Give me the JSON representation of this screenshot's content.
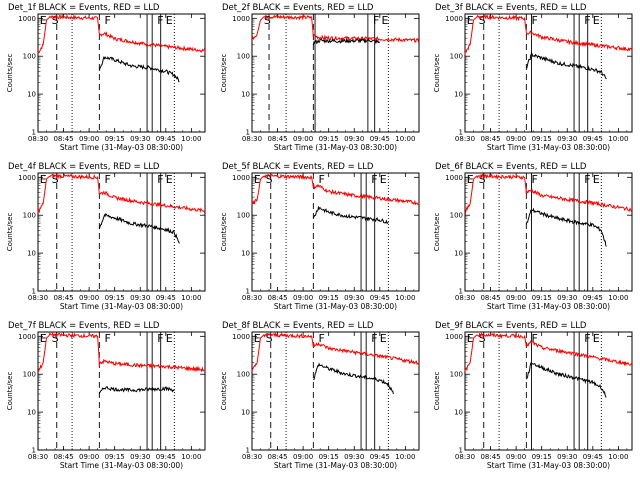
{
  "common": {
    "xlabel": "Start Time (31-May-03 08:30:00)",
    "ylabel": "Counts/sec",
    "x_ticks": [
      "08:30",
      "08:45",
      "09:00",
      "09:15",
      "09:30",
      "09:45",
      "10:00"
    ],
    "y_ticks": [
      "1",
      "10",
      "100",
      "1000"
    ],
    "colors": {
      "events": "#000000",
      "lld": "#ff0000"
    }
  },
  "chart_data": [
    {
      "type": "line",
      "title": "Det_1f BLACK = Events, RED = LLD",
      "xlim": [
        "08:30",
        "10:08"
      ],
      "ylim": [
        1,
        1300
      ],
      "y_scale": "log",
      "annotations": [
        {
          "t": "08:31",
          "text": "E"
        },
        {
          "t": "08:38",
          "text": "S"
        },
        {
          "t": "09:09",
          "text": "F"
        },
        {
          "t": "09:40",
          "text": "F"
        },
        {
          "t": "09:45",
          "text": "E"
        }
      ],
      "dashed_lines": [
        "08:41",
        "09:06"
      ],
      "dotted_lines": [
        "08:50",
        "09:50"
      ],
      "solid_lines": [
        "09:34",
        "09:37",
        "09:42"
      ],
      "series": [
        {
          "name": "LLD",
          "x": [
            "08:30",
            "08:33",
            "08:35",
            "08:37",
            "09:05",
            "09:06",
            "09:09",
            "09:15",
            "09:30",
            "09:45",
            "10:08"
          ],
          "values": [
            120,
            200,
            900,
            1100,
            1000,
            370,
            400,
            290,
            220,
            180,
            140
          ]
        },
        {
          "name": "Events",
          "x": [
            "09:06",
            "09:09",
            "09:15",
            "09:25",
            "09:35",
            "09:45",
            "09:50",
            "09:53"
          ],
          "values": [
            45,
            95,
            80,
            55,
            50,
            40,
            32,
            22
          ]
        }
      ]
    },
    {
      "type": "line",
      "title": "Det_2f BLACK = Events, RED = LLD",
      "xlim": [
        "08:30",
        "10:08"
      ],
      "ylim": [
        1,
        1300
      ],
      "y_scale": "log",
      "annotations": [
        {
          "t": "08:37",
          "text": "S"
        },
        {
          "t": "09:41",
          "text": "F"
        },
        {
          "t": "09:46",
          "text": "E"
        }
      ],
      "dashed_lines": [
        "08:40",
        "09:06"
      ],
      "dotted_lines": [
        "08:50",
        "09:50"
      ],
      "solid_lines": [
        "09:07",
        "09:38",
        "09:42"
      ],
      "series": [
        {
          "name": "LLD",
          "x": [
            "08:30",
            "08:33",
            "08:35",
            "08:37",
            "09:05",
            "09:06",
            "09:10",
            "09:20",
            "09:40",
            "10:08"
          ],
          "values": [
            300,
            380,
            900,
            1100,
            1050,
            350,
            310,
            300,
            290,
            260
          ]
        },
        {
          "name": "Events",
          "x": [
            "09:06",
            "09:10",
            "09:20",
            "09:40",
            "09:45"
          ],
          "values": [
            220,
            260,
            250,
            260,
            230
          ]
        }
      ]
    },
    {
      "type": "line",
      "title": "Det_3f BLACK = Events, RED = LLD",
      "xlim": [
        "08:30",
        "10:08"
      ],
      "ylim": [
        1,
        1300
      ],
      "y_scale": "log",
      "annotations": [
        {
          "t": "08:31",
          "text": "E"
        },
        {
          "t": "08:38",
          "text": "S"
        },
        {
          "t": "09:09",
          "text": "F"
        },
        {
          "t": "09:40",
          "text": "F"
        },
        {
          "t": "09:45",
          "text": "E"
        }
      ],
      "dashed_lines": [
        "08:41",
        "09:06"
      ],
      "dotted_lines": [
        "08:50",
        "09:50"
      ],
      "solid_lines": [
        "09:09",
        "09:34",
        "09:37",
        "09:42"
      ],
      "series": [
        {
          "name": "LLD",
          "x": [
            "08:30",
            "08:33",
            "08:35",
            "08:37",
            "09:05",
            "09:06",
            "09:09",
            "09:15",
            "09:30",
            "09:45",
            "10:08"
          ],
          "values": [
            120,
            200,
            900,
            1100,
            1000,
            400,
            420,
            320,
            240,
            200,
            150
          ]
        },
        {
          "name": "Events",
          "x": [
            "09:06",
            "09:09",
            "09:15",
            "09:25",
            "09:35",
            "09:45",
            "09:50",
            "09:53"
          ],
          "values": [
            50,
            110,
            90,
            65,
            55,
            45,
            38,
            25
          ]
        }
      ]
    },
    {
      "type": "line",
      "title": "Det_4f BLACK = Events, RED = LLD",
      "xlim": [
        "08:30",
        "10:08"
      ],
      "ylim": [
        1,
        1300
      ],
      "y_scale": "log",
      "annotations": [
        {
          "t": "08:31",
          "text": "E"
        },
        {
          "t": "08:38",
          "text": "S"
        },
        {
          "t": "09:09",
          "text": "F"
        },
        {
          "t": "09:40",
          "text": "F"
        },
        {
          "t": "09:45",
          "text": "E"
        }
      ],
      "dashed_lines": [
        "08:41",
        "09:06"
      ],
      "dotted_lines": [
        "08:50",
        "09:50"
      ],
      "solid_lines": [
        "09:34",
        "09:37",
        "09:42"
      ],
      "series": [
        {
          "name": "LLD",
          "x": [
            "08:30",
            "08:33",
            "08:35",
            "08:37",
            "09:05",
            "09:06",
            "09:09",
            "09:15",
            "09:30",
            "09:45",
            "10:08"
          ],
          "values": [
            120,
            200,
            900,
            1100,
            1000,
            370,
            400,
            290,
            220,
            180,
            130
          ]
        },
        {
          "name": "Events",
          "x": [
            "09:06",
            "09:09",
            "09:15",
            "09:25",
            "09:35",
            "09:45",
            "09:50",
            "09:53"
          ],
          "values": [
            45,
            100,
            85,
            60,
            52,
            42,
            35,
            18
          ]
        }
      ]
    },
    {
      "type": "line",
      "title": "Det_5f BLACK = Events, RED = LLD",
      "xlim": [
        "08:30",
        "10:08"
      ],
      "ylim": [
        1,
        1300
      ],
      "y_scale": "log",
      "annotations": [
        {
          "t": "08:31",
          "text": "E"
        },
        {
          "t": "08:38",
          "text": "S"
        },
        {
          "t": "09:09",
          "text": "F"
        },
        {
          "t": "09:40",
          "text": "F"
        },
        {
          "t": "09:45",
          "text": "E"
        }
      ],
      "dashed_lines": [
        "08:41",
        "09:06"
      ],
      "dotted_lines": [
        "08:50",
        "09:50"
      ],
      "solid_lines": [
        "09:34",
        "09:37",
        "09:42"
      ],
      "series": [
        {
          "name": "LLD",
          "x": [
            "08:30",
            "08:33",
            "08:35",
            "08:37",
            "09:05",
            "09:06",
            "09:09",
            "09:15",
            "09:30",
            "09:45",
            "10:08"
          ],
          "values": [
            200,
            250,
            900,
            1100,
            1000,
            550,
            600,
            420,
            330,
            280,
            210
          ]
        },
        {
          "name": "Events",
          "x": [
            "09:06",
            "09:09",
            "09:15",
            "09:25",
            "09:35",
            "09:45",
            "09:50"
          ],
          "values": [
            80,
            160,
            120,
            95,
            85,
            75,
            65
          ]
        }
      ]
    },
    {
      "type": "line",
      "title": "Det_6f BLACK = Events, RED = LLD",
      "xlim": [
        "08:30",
        "10:08"
      ],
      "ylim": [
        1,
        1300
      ],
      "y_scale": "log",
      "annotations": [
        {
          "t": "08:31",
          "text": "E"
        },
        {
          "t": "08:38",
          "text": "S"
        },
        {
          "t": "09:09",
          "text": "F"
        },
        {
          "t": "09:40",
          "text": "F"
        },
        {
          "t": "09:45",
          "text": "E"
        }
      ],
      "dashed_lines": [
        "08:41",
        "09:06"
      ],
      "dotted_lines": [
        "08:50",
        "09:50"
      ],
      "solid_lines": [
        "09:09",
        "09:34",
        "09:37",
        "09:42"
      ],
      "series": [
        {
          "name": "LLD",
          "x": [
            "08:30",
            "08:33",
            "08:35",
            "08:37",
            "09:05",
            "09:06",
            "09:09",
            "09:15",
            "09:30",
            "09:45",
            "10:08"
          ],
          "values": [
            120,
            200,
            900,
            1100,
            1000,
            400,
            450,
            330,
            260,
            210,
            140
          ]
        },
        {
          "name": "Events",
          "x": [
            "09:06",
            "09:09",
            "09:15",
            "09:25",
            "09:35",
            "09:45",
            "09:50",
            "09:53"
          ],
          "values": [
            55,
            140,
            110,
            80,
            65,
            55,
            40,
            15
          ]
        }
      ]
    },
    {
      "type": "line",
      "title": "Det_7f BLACK = Events, RED = LLD",
      "xlim": [
        "08:30",
        "10:08"
      ],
      "ylim": [
        1,
        1300
      ],
      "y_scale": "log",
      "annotations": [
        {
          "t": "08:31",
          "text": "E"
        },
        {
          "t": "08:38",
          "text": "S"
        },
        {
          "t": "09:09",
          "text": "F"
        },
        {
          "t": "09:40",
          "text": "F"
        },
        {
          "t": "09:45",
          "text": "E"
        }
      ],
      "dashed_lines": [
        "08:41",
        "09:06"
      ],
      "dotted_lines": [
        "08:50",
        "09:50"
      ],
      "solid_lines": [
        "09:34",
        "09:37",
        "09:42"
      ],
      "series": [
        {
          "name": "LLD",
          "x": [
            "08:30",
            "08:33",
            "08:35",
            "08:37",
            "09:05",
            "09:06",
            "09:09",
            "09:15",
            "09:30",
            "09:45",
            "10:08"
          ],
          "values": [
            120,
            200,
            900,
            1100,
            1000,
            200,
            220,
            190,
            170,
            160,
            130
          ]
        },
        {
          "name": "Events",
          "x": [
            "09:06",
            "09:09",
            "09:15",
            "09:25",
            "09:35",
            "09:45",
            "09:50"
          ],
          "values": [
            30,
            45,
            40,
            38,
            40,
            42,
            38
          ]
        }
      ]
    },
    {
      "type": "line",
      "title": "Det_8f BLACK = Events, RED = LLD",
      "xlim": [
        "08:30",
        "10:08"
      ],
      "ylim": [
        1,
        1300
      ],
      "y_scale": "log",
      "annotations": [
        {
          "t": "08:31",
          "text": "E"
        },
        {
          "t": "08:38",
          "text": "S"
        },
        {
          "t": "09:09",
          "text": "F"
        },
        {
          "t": "09:40",
          "text": "F"
        },
        {
          "t": "09:45",
          "text": "E"
        }
      ],
      "dashed_lines": [
        "08:41",
        "09:06"
      ],
      "dotted_lines": [
        "08:50",
        "09:50"
      ],
      "solid_lines": [
        "09:34",
        "09:37",
        "09:42"
      ],
      "series": [
        {
          "name": "LLD",
          "x": [
            "08:30",
            "08:33",
            "08:35",
            "08:37",
            "09:05",
            "09:06",
            "09:09",
            "09:15",
            "09:30",
            "09:45",
            "10:08"
          ],
          "values": [
            120,
            200,
            900,
            1100,
            1000,
            550,
            650,
            480,
            380,
            300,
            200
          ]
        },
        {
          "name": "Events",
          "x": [
            "09:06",
            "09:09",
            "09:15",
            "09:25",
            "09:35",
            "09:45",
            "09:50",
            "09:53"
          ],
          "values": [
            70,
            180,
            140,
            100,
            85,
            70,
            55,
            30
          ]
        }
      ]
    },
    {
      "type": "line",
      "title": "Det_9f BLACK = Events, RED = LLD",
      "xlim": [
        "08:30",
        "10:08"
      ],
      "ylim": [
        1,
        1300
      ],
      "y_scale": "log",
      "annotations": [
        {
          "t": "08:31",
          "text": "E"
        },
        {
          "t": "08:38",
          "text": "S"
        },
        {
          "t": "09:09",
          "text": "F"
        },
        {
          "t": "09:40",
          "text": "F"
        },
        {
          "t": "09:45",
          "text": "E"
        }
      ],
      "dashed_lines": [
        "08:41",
        "09:06"
      ],
      "dotted_lines": [
        "08:50",
        "09:50"
      ],
      "solid_lines": [
        "09:09",
        "09:34",
        "09:37",
        "09:42"
      ],
      "series": [
        {
          "name": "LLD",
          "x": [
            "08:30",
            "08:33",
            "08:35",
            "08:37",
            "09:05",
            "09:06",
            "09:09",
            "09:15",
            "09:30",
            "09:45",
            "10:08"
          ],
          "values": [
            120,
            200,
            900,
            1100,
            1000,
            550,
            700,
            500,
            380,
            280,
            180
          ]
        },
        {
          "name": "Events",
          "x": [
            "09:06",
            "09:09",
            "09:15",
            "09:25",
            "09:35",
            "09:45",
            "09:50",
            "09:53"
          ],
          "values": [
            70,
            200,
            150,
            100,
            80,
            60,
            45,
            25
          ]
        }
      ]
    }
  ]
}
